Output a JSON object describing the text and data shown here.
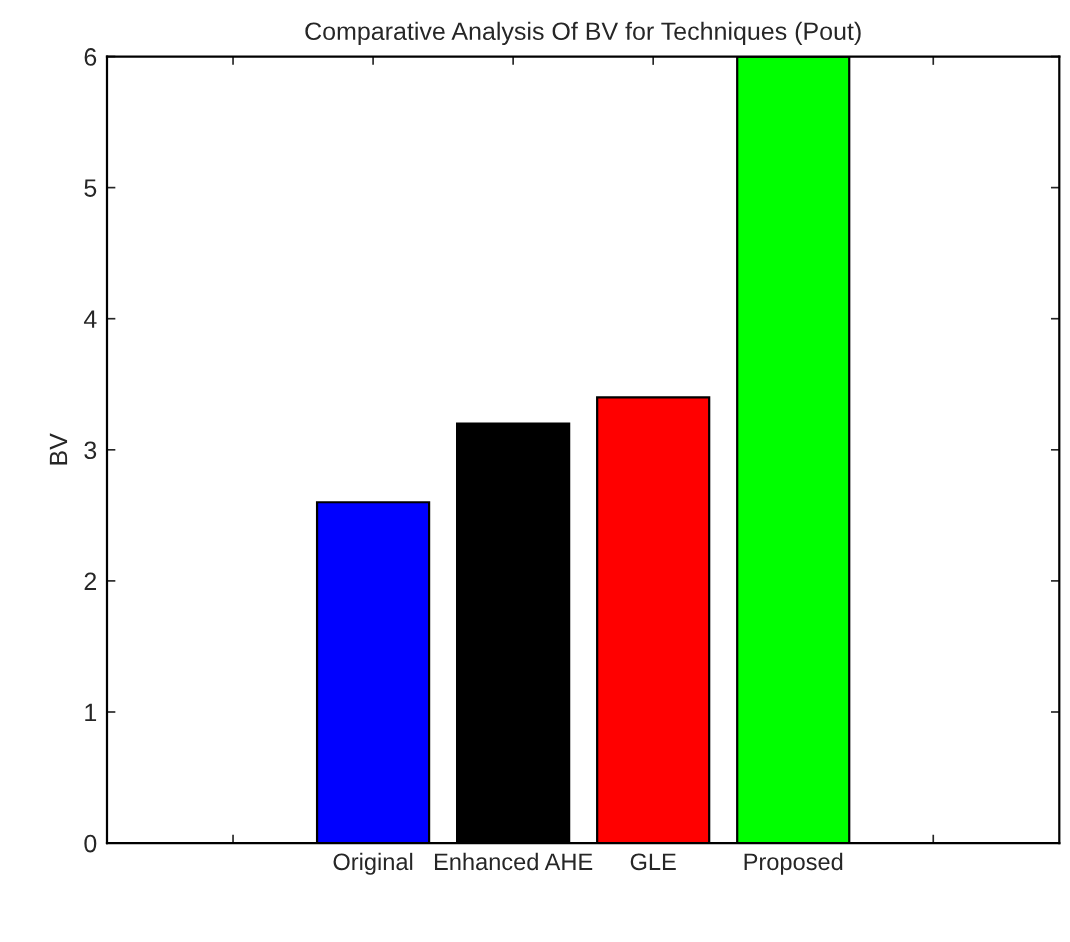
{
  "chart_data": {
    "type": "bar",
    "title": "Comparative Analysis Of BV for Techniques (Pout)",
    "ylabel": "BV",
    "categories": [
      null,
      "Original",
      "Enhanced AHE",
      "GLE",
      "Proposed",
      null
    ],
    "values": [
      0,
      2.6,
      3.2,
      3.4,
      6,
      0
    ],
    "colors": [
      "#000000",
      "#0000ff",
      "#000000",
      "#ff0000",
      "#00ff00",
      "#000000"
    ],
    "ylim": [
      0,
      6
    ],
    "yticks": [
      0,
      1,
      2,
      3,
      4,
      5,
      6
    ],
    "grid": false,
    "legend": false
  }
}
